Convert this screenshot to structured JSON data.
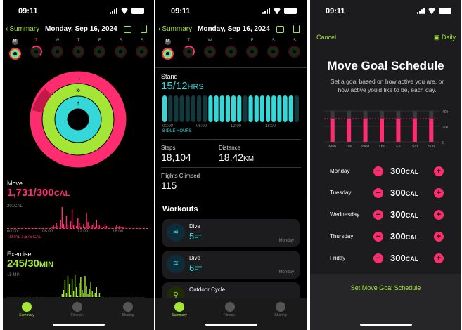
{
  "colors": {
    "move": "#ff2d6f",
    "exercise": "#a3e635",
    "stand": "#34d8d8",
    "accent": "#a3e635"
  },
  "status": {
    "time": "09:11"
  },
  "summary_nav": {
    "back": "Summary",
    "date": "Monday, Sep 16, 2024"
  },
  "week_days": [
    "M",
    "T",
    "W",
    "T",
    "F",
    "S",
    "S"
  ],
  "screen1": {
    "move": {
      "label": "Move",
      "value": "1,731/300",
      "unit": "CAL",
      "scale": "201CAL",
      "total": "TOTAL 3,575 CAL",
      "ticks": [
        "00:00",
        "06:00",
        "12:00",
        "18:00"
      ]
    },
    "exercise": {
      "label": "Exercise",
      "value": "245/30",
      "unit": "MIN",
      "scale": "15 MIN"
    }
  },
  "screen2": {
    "stand": {
      "label": "Stand",
      "value": "15/12",
      "unit": "HRS",
      "idle": "8 IDLE HOURS",
      "ticks": [
        "00:00",
        "06:00",
        "12:00",
        "18:00"
      ]
    },
    "steps": {
      "label": "Steps",
      "value": "18,104"
    },
    "distance": {
      "label": "Distance",
      "value": "18.42",
      "unit": "KM"
    },
    "flights": {
      "label": "Flights Climbed",
      "value": "115"
    },
    "workouts_title": "Workouts",
    "workouts": [
      {
        "name": "Dive",
        "value": "5",
        "unit": "FT",
        "day": "Monday",
        "icon": "dive-icon"
      },
      {
        "name": "Dive",
        "value": "6",
        "unit": "FT",
        "day": "Monday",
        "icon": "dive-icon"
      },
      {
        "name": "Outdoor Cycle",
        "value": "",
        "unit": "",
        "day": "",
        "icon": "cycle-icon"
      }
    ]
  },
  "tabs": [
    {
      "label": "Summary",
      "icon": "activity-rings-icon"
    },
    {
      "label": "Fitness+",
      "icon": "runner-icon"
    },
    {
      "label": "Sharing",
      "icon": "people-icon"
    }
  ],
  "screen3": {
    "cancel": "Cancel",
    "daily": "Daily",
    "title": "Move Goal Schedule",
    "description": "Set a goal based on how active you are, or how active you'd like to be, each day.",
    "chart_days": [
      "Mon",
      "Tue",
      "Wed",
      "Thu",
      "Fri",
      "Sat",
      "Sun"
    ],
    "chart_ticks": [
      "400",
      "200",
      "0"
    ],
    "rows": [
      {
        "day": "Monday",
        "value": "300",
        "unit": "CAL"
      },
      {
        "day": "Tuesday",
        "value": "300",
        "unit": "CAL"
      },
      {
        "day": "Wednesday",
        "value": "300",
        "unit": "CAL"
      },
      {
        "day": "Thursday",
        "value": "300",
        "unit": "CAL"
      },
      {
        "day": "Friday",
        "value": "300",
        "unit": "CAL"
      }
    ],
    "set_button": "Set Move Goal Schedule"
  }
}
